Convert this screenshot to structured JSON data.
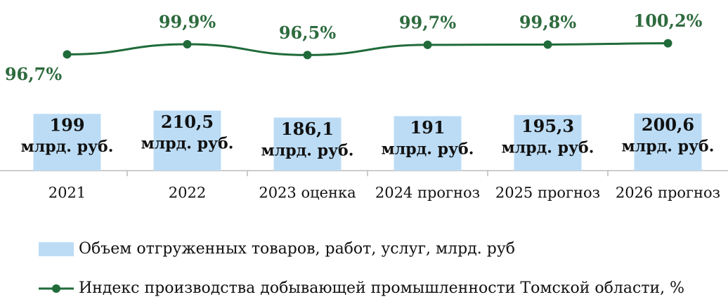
{
  "chart_data": {
    "type": "bar_line",
    "categories": [
      "2021",
      "2022",
      "2023 оценка",
      "2024 прогноз",
      "2025 прогноз",
      "2026 прогноз"
    ],
    "ylim": [
      0,
      500
    ],
    "y2lim": [
      60,
      105
    ],
    "bar_label_unit": "млрд. руб.",
    "legend": "bottom",
    "series": [
      {
        "name": "Объем отгруженных товаров, работ, услуг, млрд. руб",
        "type": "bar",
        "color": "#bcdcf5",
        "values": [
          199,
          210.5,
          186.1,
          191,
          195.3,
          200.6
        ],
        "value_labels": [
          "199",
          "210,5",
          "186,1",
          "191",
          "195,3",
          "200,6"
        ]
      },
      {
        "name": "Индекс производства добывающей промышленности Томской области, %",
        "type": "line",
        "axis": "y2",
        "color": "#1f6b3a",
        "values": [
          96.7,
          99.9,
          96.5,
          99.7,
          99.8,
          100.2
        ],
        "value_labels": [
          "96,7%",
          "99,9%",
          "96,5%",
          "99,7%",
          "99,8%",
          "100,2%"
        ]
      }
    ]
  }
}
